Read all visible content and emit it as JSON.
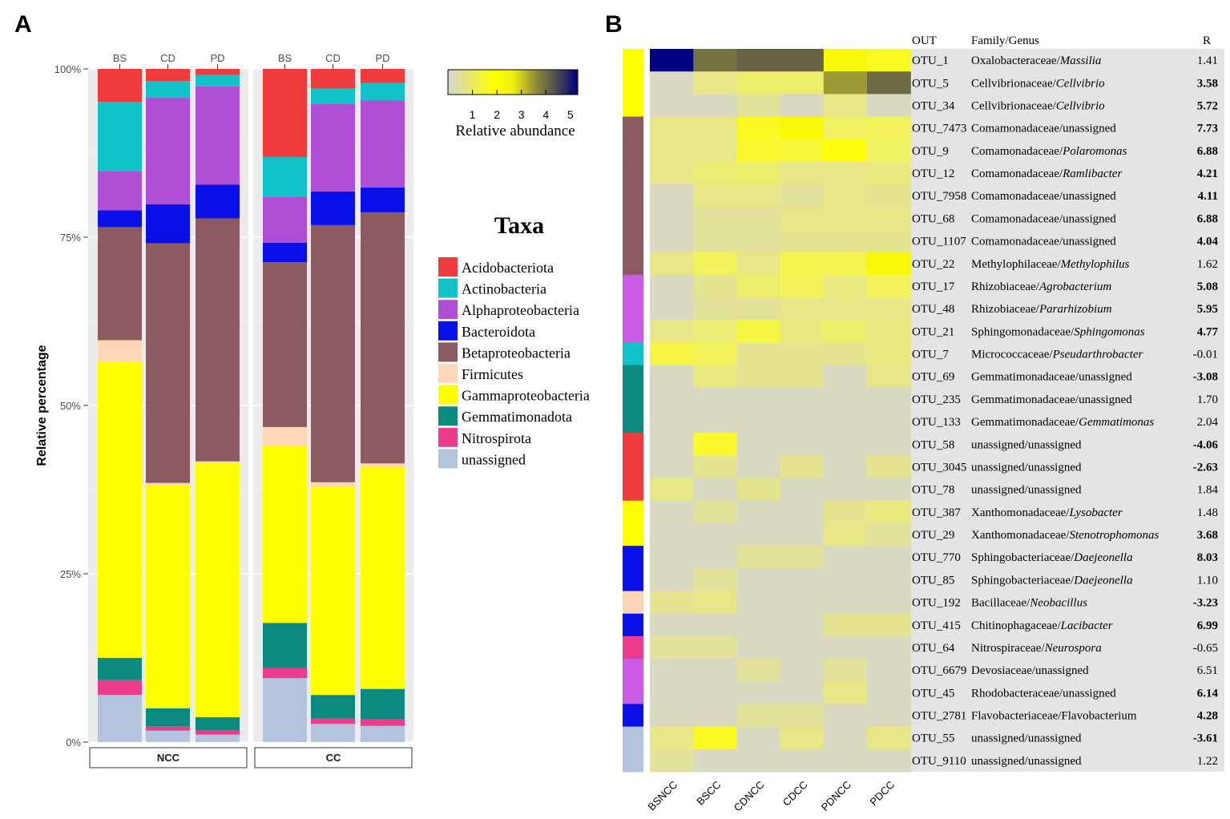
{
  "chart_data": [
    {
      "type": "bar",
      "panel_label": "A",
      "stacked": true,
      "ylabel": "Relative percentage",
      "ytick_labels": [
        "0%",
        "25%",
        "50%",
        "75%",
        "100%"
      ],
      "ylim": [
        0,
        100
      ],
      "facets": [
        "NCC",
        "CC"
      ],
      "categories": [
        "BS",
        "CD",
        "PD"
      ],
      "legend_title": "Taxa",
      "legend": [
        {
          "name": "Acidobacteriota",
          "color": "#ef3b3b"
        },
        {
          "name": "Actinobacteria",
          "color": "#12c2c9"
        },
        {
          "name": "Alphaproteobacteria",
          "color": "#b04fd6"
        },
        {
          "name": "Bacteroidota",
          "color": "#0a10e8"
        },
        {
          "name": "Betaproteobacteria",
          "color": "#8b5b61"
        },
        {
          "name": "Firmicutes",
          "color": "#fdd6b8"
        },
        {
          "name": "Gammaproteobacteria",
          "color": "#ffff00"
        },
        {
          "name": "Gemmatimonadota",
          "color": "#0d8a7f"
        },
        {
          "name": "Nitrospirota",
          "color": "#ee3c8c"
        },
        {
          "name": "unassigned",
          "color": "#b3c4de"
        }
      ],
      "series_order_bottom_to_top": [
        "unassigned",
        "Nitrospirota",
        "Gemmatimonadota",
        "Gammaproteobacteria",
        "Firmicutes",
        "Betaproteobacteria",
        "Bacteroidota",
        "Alphaproteobacteria",
        "Actinobacteria",
        "Acidobacteriota"
      ],
      "bars": [
        {
          "facet": "NCC",
          "category": "BS",
          "values": {
            "unassigned": 7.0,
            "Nitrospirota": 2.2,
            "Gemmatimonadota": 3.3,
            "Gammaproteobacteria": 44.0,
            "Firmicutes": 3.2,
            "Betaproteobacteria": 16.8,
            "Bacteroidota": 2.5,
            "Alphaproteobacteria": 5.8,
            "Actinobacteria": 10.3,
            "Acidobacteriota": 4.9
          }
        },
        {
          "facet": "NCC",
          "category": "CD",
          "values": {
            "unassigned": 1.7,
            "Nitrospirota": 0.6,
            "Gemmatimonadota": 2.7,
            "Gammaproteobacteria": 33.1,
            "Firmicutes": 0.4,
            "Betaproteobacteria": 35.6,
            "Bacteroidota": 5.8,
            "Alphaproteobacteria": 15.8,
            "Actinobacteria": 2.5,
            "Acidobacteriota": 1.8
          }
        },
        {
          "facet": "NCC",
          "category": "PD",
          "values": {
            "unassigned": 1.1,
            "Nitrospirota": 0.6,
            "Gemmatimonadota": 2.0,
            "Gammaproteobacteria": 37.8,
            "Firmicutes": 0.2,
            "Betaproteobacteria": 36.1,
            "Bacteroidota": 5.0,
            "Alphaproteobacteria": 14.6,
            "Actinobacteria": 1.7,
            "Acidobacteriota": 0.9
          }
        },
        {
          "facet": "CC",
          "category": "BS",
          "values": {
            "unassigned": 9.5,
            "Nitrospirota": 1.5,
            "Gemmatimonadota": 6.7,
            "Gammaproteobacteria": 26.3,
            "Firmicutes": 2.8,
            "Betaproteobacteria": 24.5,
            "Bacteroidota": 2.9,
            "Alphaproteobacteria": 6.8,
            "Actinobacteria": 5.9,
            "Acidobacteriota": 13.1
          }
        },
        {
          "facet": "CC",
          "category": "CD",
          "values": {
            "unassigned": 2.7,
            "Nitrospirota": 0.8,
            "Gemmatimonadota": 3.5,
            "Gammaproteobacteria": 31.0,
            "Firmicutes": 0.6,
            "Betaproteobacteria": 38.2,
            "Bacteroidota": 5.0,
            "Alphaproteobacteria": 13.0,
            "Actinobacteria": 2.3,
            "Acidobacteriota": 2.9
          }
        },
        {
          "facet": "CC",
          "category": "PD",
          "values": {
            "unassigned": 2.4,
            "Nitrospirota": 1.0,
            "Gemmatimonadota": 4.5,
            "Gammaproteobacteria": 33.0,
            "Firmicutes": 0.5,
            "Betaproteobacteria": 37.3,
            "Bacteroidota": 3.7,
            "Alphaproteobacteria": 12.9,
            "Actinobacteria": 2.6,
            "Acidobacteriota": 2.1
          }
        }
      ]
    },
    {
      "type": "heatmap",
      "panel_label": "B",
      "colorbar_label": "Relative abundance",
      "colorbar_ticks": [
        "1",
        "2",
        "3",
        "4",
        "5"
      ],
      "colorbar_range": [
        0,
        5.3
      ],
      "columns": [
        "BSNCC",
        "BSCC",
        "CDNCC",
        "CDCC",
        "PDNCC",
        "PDCC"
      ],
      "header": {
        "otu": "OUT",
        "taxon": "Family/Genus",
        "r": "R"
      },
      "rows": [
        {
          "otu": "OTU_1",
          "family": "Oxalobacteraceae/",
          "genus": "Massilia",
          "r": "1.41",
          "bold": false,
          "group_color": "#ffff00",
          "values": [
            5.3,
            3.6,
            3.8,
            3.8,
            2.2,
            1.5
          ]
        },
        {
          "otu": "OTU_5",
          "family": "Cellvibrionaceae/",
          "genus": "Cellvibrio",
          "r": "3.58",
          "bold": true,
          "group_color": "#ffff00",
          "values": [
            0.1,
            0.5,
            0.8,
            0.8,
            3.2,
            3.7
          ]
        },
        {
          "otu": "OTU_34",
          "family": "Cellvibrionaceae/",
          "genus": "Cellvibrio",
          "r": "5.72",
          "bold": true,
          "group_color": "#ffff00",
          "values": [
            0.1,
            0.1,
            0.3,
            0.1,
            0.5,
            0.1
          ]
        },
        {
          "otu": "OTU_7473",
          "family": "Comamonadaceae/unassigned",
          "genus": "",
          "r": "7.73",
          "bold": true,
          "group_color": "#8b5b61",
          "values": [
            0.5,
            0.5,
            1.5,
            2.1,
            0.9,
            1.0
          ]
        },
        {
          "otu": "OTU_9",
          "family": "Comamonadaceae/",
          "genus": "Polaromonas",
          "r": "6.88",
          "bold": true,
          "group_color": "#8b5b61",
          "values": [
            0.5,
            0.5,
            1.4,
            1.3,
            1.7,
            0.9
          ]
        },
        {
          "otu": "OTU_12",
          "family": "Comamonadaceae/",
          "genus": "Ramlibacter",
          "r": "4.21",
          "bold": true,
          "group_color": "#8b5b61",
          "values": [
            0.5,
            0.7,
            0.8,
            0.5,
            0.5,
            0.6
          ]
        },
        {
          "otu": "OTU_7958",
          "family": "Comamonadaceae/unassigned",
          "genus": "",
          "r": "4.11",
          "bold": true,
          "group_color": "#8b5b61",
          "values": [
            0.1,
            0.5,
            0.5,
            0.3,
            0.5,
            0.4
          ]
        },
        {
          "otu": "OTU_68",
          "family": "Comamonadaceae/unassigned",
          "genus": "",
          "r": "6.88",
          "bold": true,
          "group_color": "#8b5b61",
          "values": [
            0.1,
            0.3,
            0.3,
            0.5,
            0.5,
            0.5
          ]
        },
        {
          "otu": "OTU_1107",
          "family": "Comamonadaceae/unassigned",
          "genus": "",
          "r": "4.04",
          "bold": true,
          "group_color": "#8b5b61",
          "values": [
            0.1,
            0.3,
            0.3,
            0.4,
            0.4,
            0.4
          ]
        },
        {
          "otu": "OTU_22",
          "family": "Methylophilaceae/",
          "genus": "Methylophilus",
          "r": "1.62",
          "bold": false,
          "group_color": "#8b5b61",
          "values": [
            0.5,
            1.0,
            0.5,
            1.1,
            1.1,
            2.2
          ]
        },
        {
          "otu": "OTU_17",
          "family": "Rhizobiaceae/",
          "genus": "Agrobacterium",
          "r": "5.08",
          "bold": true,
          "group_color": "#c95be4",
          "values": [
            0.1,
            0.4,
            0.8,
            1.0,
            0.6,
            1.0
          ]
        },
        {
          "otu": "OTU_48",
          "family": "Rhizobiaceae/",
          "genus": "Pararhizobium",
          "r": "5.95",
          "bold": true,
          "group_color": "#c95be4",
          "values": [
            0.1,
            0.3,
            0.3,
            0.5,
            0.5,
            0.5
          ]
        },
        {
          "otu": "OTU_21",
          "family": "Sphingomonadaceae/",
          "genus": "Sphingomonas",
          "r": "4.77",
          "bold": true,
          "group_color": "#c95be4",
          "values": [
            0.5,
            0.7,
            1.2,
            0.6,
            0.8,
            0.6
          ]
        },
        {
          "otu": "OTU_7",
          "family": "Micrococcaceae/",
          "genus": "Pseudarthrobacter",
          "r": "-0.01",
          "bold": false,
          "group_color": "#12c2c9",
          "values": [
            1.2,
            1.0,
            0.4,
            0.4,
            0.4,
            0.6
          ]
        },
        {
          "otu": "OTU_69",
          "family": "Gemmatimonadaceae/unassigned",
          "genus": "",
          "r": "-3.08",
          "bold": true,
          "group_color": "#0d8a7f",
          "values": [
            0.1,
            0.6,
            0.4,
            0.4,
            0.1,
            0.5
          ]
        },
        {
          "otu": "OTU_235",
          "family": "Gemmatimonadaceae/unassigned",
          "genus": "",
          "r": "1.70",
          "bold": false,
          "group_color": "#0d8a7f",
          "values": [
            0.1,
            0.1,
            0.1,
            0.1,
            0.1,
            0.1
          ]
        },
        {
          "otu": "OTU_133",
          "family": "Gemmatimonadaceae/",
          "genus": "Gemmatimonas",
          "r": "2.04",
          "bold": false,
          "group_color": "#0d8a7f",
          "values": [
            0.1,
            0.1,
            0.1,
            0.1,
            0.1,
            0.1
          ]
        },
        {
          "otu": "OTU_58",
          "family": "unassigned/unassigned",
          "genus": "",
          "r": "-4.06",
          "bold": true,
          "group_color": "#ef3b3b",
          "values": [
            0.1,
            1.4,
            0.1,
            0.1,
            0.1,
            0.1
          ]
        },
        {
          "otu": "OTU_3045",
          "family": "unassigned/unassigned",
          "genus": "",
          "r": "-2.63",
          "bold": true,
          "group_color": "#ef3b3b",
          "values": [
            0.1,
            0.4,
            0.1,
            0.4,
            0.1,
            0.4
          ]
        },
        {
          "otu": "OTU_78",
          "family": "unassigned/unassigned",
          "genus": "",
          "r": "1.84",
          "bold": false,
          "group_color": "#ef3b3b",
          "values": [
            0.5,
            0.1,
            0.4,
            0.1,
            0.1,
            0.1
          ]
        },
        {
          "otu": "OTU_387",
          "family": "Xanthomonadaceae/",
          "genus": "Lysobacter",
          "r": "1.48",
          "bold": false,
          "group_color": "#ffff00",
          "values": [
            0.1,
            0.3,
            0.1,
            0.1,
            0.4,
            0.6
          ]
        },
        {
          "otu": "OTU_29",
          "family": "Xanthomonadaceae/",
          "genus": "Stenotrophomonas",
          "r": "3.68",
          "bold": true,
          "group_color": "#ffff00",
          "values": [
            0.1,
            0.1,
            0.1,
            0.1,
            0.5,
            0.3
          ]
        },
        {
          "otu": "OTU_770",
          "family": "Sphingobacteriaceae/",
          "genus": "Daejeonella",
          "r": "8.03",
          "bold": true,
          "group_color": "#0a10e8",
          "values": [
            0.1,
            0.1,
            0.3,
            0.3,
            0.1,
            0.1
          ]
        },
        {
          "otu": "OTU_85",
          "family": "Sphingobacteriaceae/",
          "genus": "Daejeonella",
          "r": "1.10",
          "bold": false,
          "group_color": "#0a10e8",
          "values": [
            0.1,
            0.3,
            0.1,
            0.1,
            0.1,
            0.1
          ]
        },
        {
          "otu": "OTU_192",
          "family": "Bacillaceae/",
          "genus": "Neobacillus",
          "r": "-3.23",
          "bold": true,
          "group_color": "#fdd6b8",
          "values": [
            0.4,
            0.5,
            0.1,
            0.1,
            0.1,
            0.1
          ]
        },
        {
          "otu": "OTU_415",
          "family": "Chitinophagaceae/",
          "genus": "Lacibacter",
          "r": "6.99",
          "bold": true,
          "group_color": "#0a10e8",
          "values": [
            0.1,
            0.1,
            0.1,
            0.1,
            0.4,
            0.4
          ]
        },
        {
          "otu": "OTU_64",
          "family": "Nitrospiraceae/",
          "genus": "Neurospora",
          "r": "-0.65",
          "bold": false,
          "group_color": "#ee3c8c",
          "values": [
            0.3,
            0.3,
            0.1,
            0.1,
            0.1,
            0.1
          ]
        },
        {
          "otu": "OTU_6679",
          "family": "Devosiaceae/unassigned",
          "genus": "",
          "r": "6.51",
          "bold": false,
          "group_color": "#c95be4",
          "values": [
            0.1,
            0.1,
            0.3,
            0.1,
            0.3,
            0.1
          ]
        },
        {
          "otu": "OTU_45",
          "family": "Rhodobacteraceae/unassigned",
          "genus": "",
          "r": "6.14",
          "bold": true,
          "group_color": "#c95be4",
          "values": [
            0.1,
            0.1,
            0.1,
            0.1,
            0.5,
            0.1
          ]
        },
        {
          "otu": "OTU_2781",
          "family": "Flavobacteriaceae/Flavobacterium",
          "genus": "",
          "r": "4.28",
          "bold": true,
          "group_color": "#0a10e8",
          "values": [
            0.1,
            0.1,
            0.3,
            0.3,
            0.1,
            0.1
          ]
        },
        {
          "otu": "OTU_55",
          "family": "unassigned/unassigned",
          "genus": "",
          "r": "-3.61",
          "bold": true,
          "group_color": "#b3c4de",
          "values": [
            0.5,
            1.5,
            0.1,
            0.5,
            0.1,
            0.5
          ]
        },
        {
          "otu": "OTU_9110",
          "family": "unassigned/unassigned",
          "genus": "",
          "r": "1.22",
          "bold": false,
          "group_color": "#b3c4de",
          "values": [
            0.3,
            0.1,
            0.1,
            0.1,
            0.1,
            0.1
          ]
        }
      ]
    }
  ]
}
